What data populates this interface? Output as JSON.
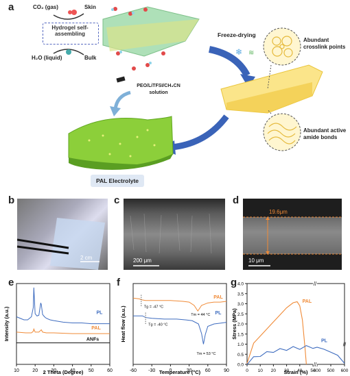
{
  "panel_a": {
    "label": "a",
    "co2": "CO₂ (gas)",
    "h2o": "H₂O (liquid)",
    "hydrogel": "Hydrogel self-assembling",
    "skin": "Skin",
    "bulk": "Bulk",
    "freeze_drying": "Freeze-drying",
    "crosslink": "Abundant crosslink points",
    "amide": "Abundant active amide bonds",
    "solution": "PEO/LiTFSI/CH₃CN solution",
    "pal_electrolyte": "PAL Electrolyte"
  },
  "panel_b": {
    "label": "b",
    "scale": "2 cm"
  },
  "panel_c": {
    "label": "c",
    "scale": "200 μm"
  },
  "panel_d": {
    "label": "d",
    "scale": "10 μm",
    "thickness": "19.6μm"
  },
  "colors": {
    "orange": "#f08a36",
    "blue": "#3d6bbf",
    "black": "#111111",
    "green": "#8ccf3a"
  },
  "chart_data": [
    {
      "panel": "e",
      "type": "line",
      "xlabel": "2 Theta (Degree)",
      "ylabel": "Intensity (a.u.)",
      "xlim": [
        10,
        60
      ],
      "xticks": [
        "10",
        "20",
        "30",
        "40",
        "50",
        "60"
      ],
      "series": [
        {
          "name": "PL",
          "x": [
            10,
            12,
            14,
            16,
            17,
            18,
            19,
            19.3,
            20,
            21,
            22,
            23,
            23.3,
            24,
            25,
            26,
            28,
            30,
            35,
            40,
            45,
            50,
            55,
            60
          ],
          "y": [
            0.62,
            0.6,
            0.58,
            0.58,
            0.6,
            0.62,
            0.74,
            1.0,
            0.66,
            0.63,
            0.64,
            0.8,
            0.78,
            0.65,
            0.62,
            0.6,
            0.58,
            0.57,
            0.55,
            0.54,
            0.54,
            0.53,
            0.53,
            0.53
          ]
        },
        {
          "name": "PAL",
          "x": [
            10,
            15,
            18,
            19,
            19.3,
            20,
            22,
            23.3,
            24,
            26,
            30,
            40,
            50,
            60
          ],
          "y": [
            0.42,
            0.41,
            0.41,
            0.43,
            0.46,
            0.42,
            0.42,
            0.45,
            0.42,
            0.41,
            0.41,
            0.4,
            0.4,
            0.4
          ]
        },
        {
          "name": "ANFs",
          "x": [
            10,
            20,
            30,
            40,
            50,
            60
          ],
          "y": [
            0.28,
            0.28,
            0.28,
            0.28,
            0.28,
            0.28
          ]
        }
      ]
    },
    {
      "panel": "f",
      "type": "line",
      "xlabel": "Temperature (°C)",
      "ylabel": "Heat flow (a.u.)",
      "xlim": [
        -60,
        90
      ],
      "xticks": [
        "-60",
        "-30",
        "0",
        "30",
        "60",
        "90"
      ],
      "annotations": [
        "Tg = -47 °C",
        "Tm = 44 °C",
        "Tg = -40 °C",
        "Tm = 53 °C"
      ],
      "series": [
        {
          "name": "PAL",
          "x": [
            -60,
            -50,
            -47,
            -40,
            -20,
            0,
            20,
            30,
            38,
            44,
            50,
            60,
            70,
            80,
            90
          ],
          "y": [
            0.82,
            0.81,
            0.8,
            0.79,
            0.79,
            0.79,
            0.78,
            0.77,
            0.73,
            0.66,
            0.73,
            0.76,
            0.77,
            0.77,
            0.78
          ]
        },
        {
          "name": "PL",
          "x": [
            -60,
            -45,
            -40,
            -30,
            -10,
            10,
            25,
            35,
            45,
            50,
            53,
            56,
            60,
            70,
            80,
            90
          ],
          "y": [
            0.6,
            0.6,
            0.58,
            0.57,
            0.56,
            0.56,
            0.55,
            0.54,
            0.5,
            0.38,
            0.25,
            0.37,
            0.47,
            0.5,
            0.51,
            0.52
          ]
        }
      ]
    },
    {
      "panel": "g",
      "type": "line",
      "xlabel": "Strain (%)",
      "ylabel": "Stress (MPa)",
      "ylim": [
        0,
        4.0
      ],
      "yticks": [
        "0.0",
        "0.5",
        "1.0",
        "1.5",
        "2.0",
        "2.5",
        "3.0",
        "3.5",
        "4.0"
      ],
      "xticks": [
        "0",
        "10",
        "20",
        "30",
        "40",
        "50",
        "400",
        "500",
        "600"
      ],
      "series": [
        {
          "name": "PAL",
          "x": [
            0,
            5,
            10,
            15,
            20,
            25,
            30,
            35,
            38,
            40,
            42,
            44,
            45
          ],
          "y": [
            0.05,
            1.05,
            1.4,
            1.75,
            2.1,
            2.45,
            2.8,
            3.05,
            3.1,
            2.9,
            2.2,
            0.8,
            0.0
          ]
        },
        {
          "name": "PL",
          "x": [
            0,
            5,
            10,
            15,
            20,
            25,
            30,
            35,
            40,
            45,
            50,
            400,
            450,
            500,
            550,
            600
          ],
          "y": [
            0.05,
            0.3,
            0.45,
            0.55,
            0.65,
            0.7,
            0.75,
            0.8,
            0.8,
            0.85,
            0.85,
            0.85,
            0.75,
            0.6,
            0.45,
            0.05
          ]
        }
      ]
    }
  ]
}
